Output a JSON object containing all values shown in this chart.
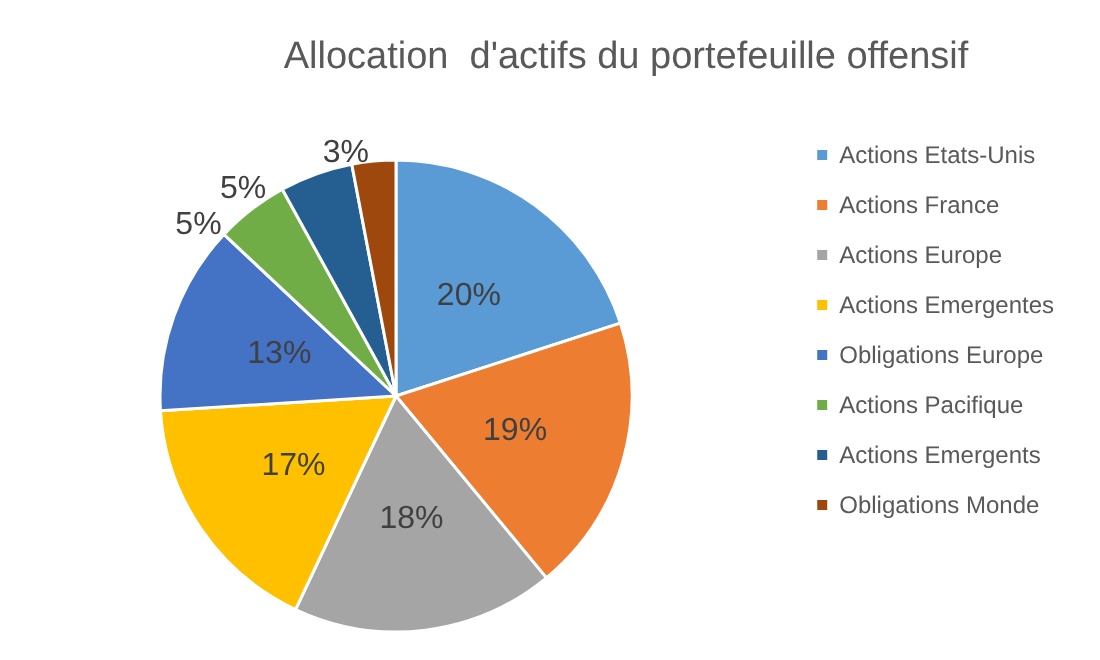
{
  "chart_data": {
    "type": "pie",
    "title": "Allocation  d'actifs du portefeuille offensif",
    "categories": [
      "Actions Etats-Unis",
      "Actions France",
      "Actions Europe",
      "Actions Emergentes",
      "Obligations Europe",
      "Actions Pacifique",
      "Actions Emergents",
      "Obligations Monde"
    ],
    "values": [
      20,
      19,
      18,
      17,
      13,
      5,
      5,
      3
    ],
    "colors": [
      "#5b9bd5",
      "#ed7d31",
      "#a5a5a5",
      "#ffc000",
      "#4472c4",
      "#70ad47",
      "#255e91",
      "#9e480e"
    ],
    "value_labels": [
      "20%",
      "19%",
      "18%",
      "17%",
      "13%",
      "5%",
      "5%",
      "3%"
    ],
    "legend": "right"
  }
}
